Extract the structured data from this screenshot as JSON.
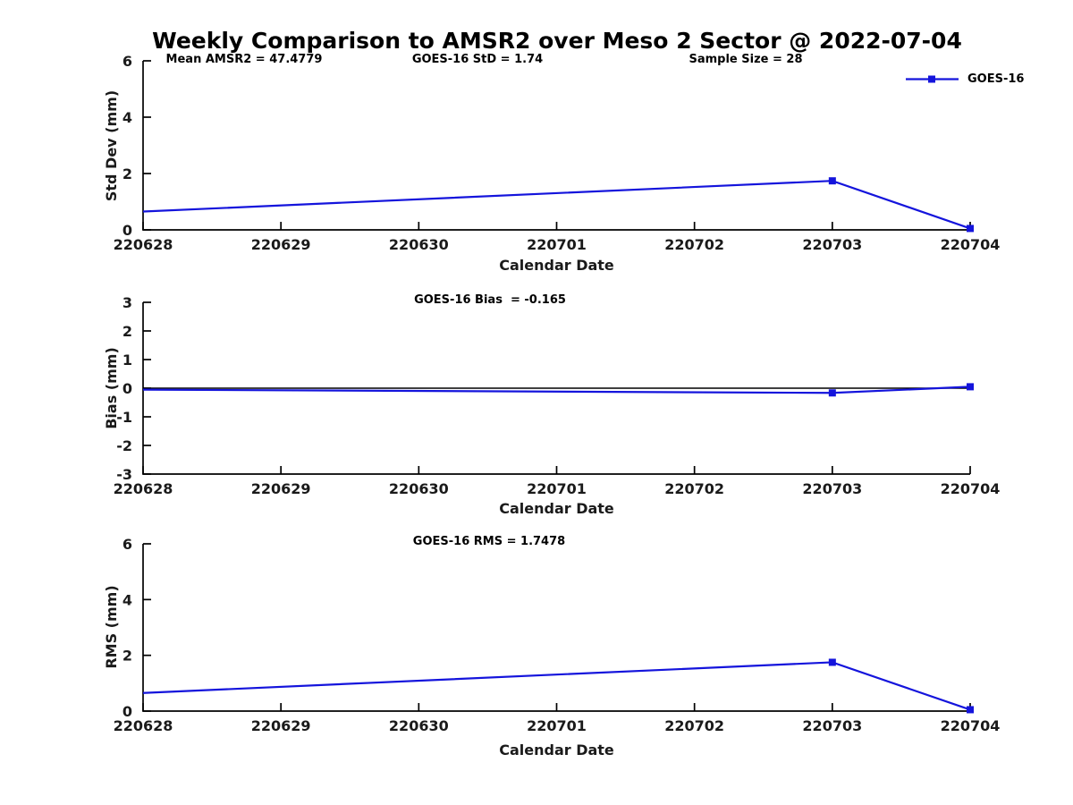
{
  "figure": {
    "title": "Weekly Comparison to AMSR2 over Meso 2 Sector @ 2022-07-04",
    "legend": {
      "label": "GOES-16",
      "marker": "filled-square"
    }
  },
  "colors": {
    "line": "#1414DC",
    "axis": "#000000",
    "zero_line": "#000000",
    "text": "#1A1A1A"
  },
  "chart_data": [
    {
      "type": "line",
      "ylabel": "Std Dev (mm)",
      "xlabel": "Calendar Date",
      "ylim": [
        0,
        6
      ],
      "yticks": [
        0,
        2,
        4,
        6
      ],
      "categories": [
        "220628",
        "220629",
        "220630",
        "220701",
        "220702",
        "220703",
        "220704"
      ],
      "annotations": [
        {
          "text": "Mean AMSR2 = 47.4779"
        },
        {
          "text": "GOES-16 StD = 1.74"
        },
        {
          "text": "Sample Size = 28"
        }
      ],
      "zero_line": false,
      "series": [
        {
          "name": "GOES-16",
          "points": [
            {
              "x": "220628",
              "y": 0.65,
              "marker": false
            },
            {
              "x": "220703",
              "y": 1.74,
              "marker": true
            },
            {
              "x": "220704",
              "y": 0.05,
              "marker": true
            }
          ]
        }
      ]
    },
    {
      "type": "line",
      "ylabel": "Bias (mm)",
      "xlabel": "Calendar Date",
      "ylim": [
        -3,
        3
      ],
      "yticks": [
        -3,
        -2,
        -1,
        0,
        1,
        2,
        3
      ],
      "categories": [
        "220628",
        "220629",
        "220630",
        "220701",
        "220702",
        "220703",
        "220704"
      ],
      "annotations": [
        {
          "text": "GOES-16 Bias  = -0.165"
        }
      ],
      "zero_line": true,
      "series": [
        {
          "name": "GOES-16",
          "points": [
            {
              "x": "220628",
              "y": -0.05,
              "marker": false
            },
            {
              "x": "220703",
              "y": -0.165,
              "marker": true
            },
            {
              "x": "220704",
              "y": 0.05,
              "marker": true
            }
          ]
        }
      ]
    },
    {
      "type": "line",
      "ylabel": "RMS (mm)",
      "xlabel": "Calendar Date",
      "ylim": [
        0,
        6
      ],
      "yticks": [
        0,
        2,
        4,
        6
      ],
      "categories": [
        "220628",
        "220629",
        "220630",
        "220701",
        "220702",
        "220703",
        "220704"
      ],
      "annotations": [
        {
          "text": "GOES-16 RMS = 1.7478"
        }
      ],
      "zero_line": false,
      "series": [
        {
          "name": "GOES-16",
          "points": [
            {
              "x": "220628",
              "y": 0.65,
              "marker": false
            },
            {
              "x": "220703",
              "y": 1.75,
              "marker": true
            },
            {
              "x": "220704",
              "y": 0.05,
              "marker": true
            }
          ]
        }
      ]
    }
  ]
}
